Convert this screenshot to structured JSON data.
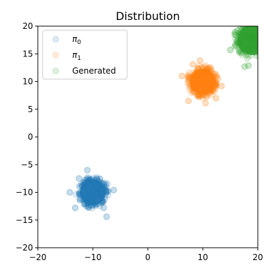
{
  "chart_data": {
    "type": "scatter",
    "title": "Distribution",
    "xlabel": "",
    "ylabel": "",
    "xlim": [
      -20,
      20
    ],
    "ylim": [
      -20,
      20
    ],
    "xticks": [
      -20,
      -10,
      0,
      10,
      20
    ],
    "yticks": [
      -20,
      -15,
      -10,
      -5,
      0,
      5,
      10,
      15,
      20
    ],
    "grid": false,
    "legend_position": "upper-left",
    "series": [
      {
        "name": "π0",
        "label_base": "π",
        "label_sub": "0",
        "color": "#1f77b4",
        "alpha": 0.15,
        "cluster": {
          "center": [
            -10,
            -10
          ],
          "radius": 3
        },
        "points": [
          [
            -11,
            -6
          ],
          [
            -7.5,
            -14.4
          ],
          [
            -13.2,
            -12.8
          ],
          [
            -6.2,
            -9.6
          ],
          [
            -14.2,
            -10
          ],
          [
            -12.5,
            -7.5
          ],
          [
            -8,
            -12.8
          ]
        ]
      },
      {
        "name": "π1",
        "label_base": "π",
        "label_sub": "1",
        "color": "#ff7f0e",
        "alpha": 0.15,
        "cluster": {
          "center": [
            10,
            10
          ],
          "radius": 3
        },
        "points": [
          [
            9.5,
            13.8
          ],
          [
            6.2,
            11
          ],
          [
            12.4,
            7
          ],
          [
            13.4,
            9.2
          ],
          [
            7.4,
            6.5
          ],
          [
            10.5,
            6.1
          ],
          [
            8.2,
            13.1
          ]
        ]
      },
      {
        "name": "Generated",
        "label_base": "Generated",
        "label_sub": "",
        "color": "#2ca02c",
        "alpha": 0.15,
        "cluster": {
          "center": [
            19,
            17.5
          ],
          "radius": 3.5
        },
        "points": [
          [
            15,
            15.7
          ],
          [
            17.6,
            12.7
          ],
          [
            18.3,
            12.9
          ],
          [
            16.3,
            19.2
          ],
          [
            17.3,
            20.5
          ]
        ]
      }
    ]
  }
}
